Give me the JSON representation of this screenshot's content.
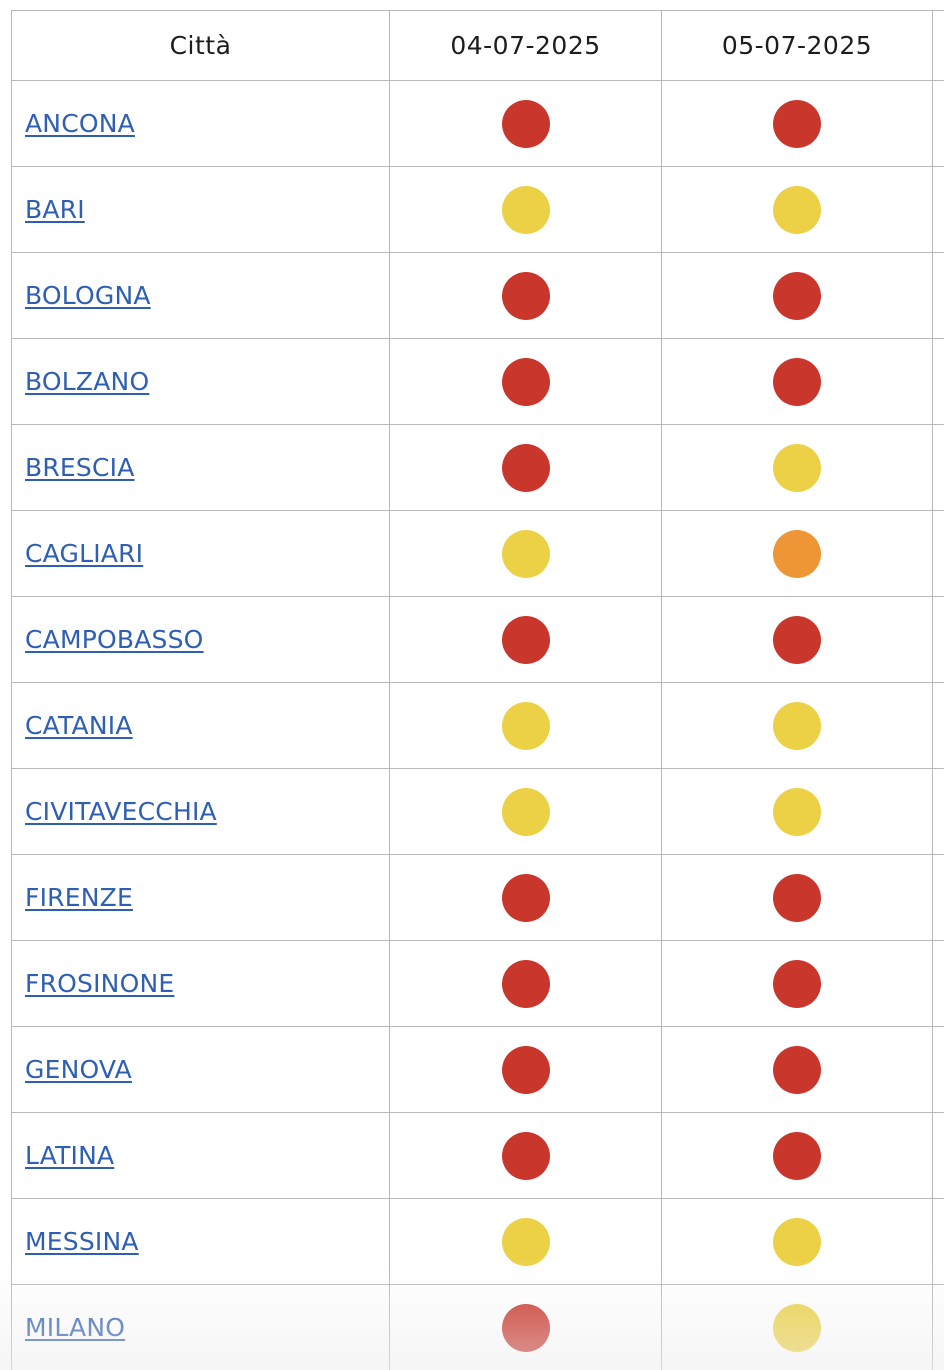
{
  "table": {
    "headers": [
      "Città",
      "04-07-2025",
      "05-07-2025",
      ""
    ],
    "level_colors": {
      "red": "#c9362c",
      "yellow": "#ecd147",
      "orange": "#ee9635"
    },
    "rows": [
      {
        "city": "ANCONA",
        "levels": [
          "red",
          "red"
        ]
      },
      {
        "city": "BARI",
        "levels": [
          "yellow",
          "yellow"
        ]
      },
      {
        "city": "BOLOGNA",
        "levels": [
          "red",
          "red"
        ]
      },
      {
        "city": "BOLZANO",
        "levels": [
          "red",
          "red"
        ]
      },
      {
        "city": "BRESCIA",
        "levels": [
          "red",
          "yellow"
        ]
      },
      {
        "city": "CAGLIARI",
        "levels": [
          "yellow",
          "orange"
        ]
      },
      {
        "city": "CAMPOBASSO",
        "levels": [
          "red",
          "red"
        ]
      },
      {
        "city": "CATANIA",
        "levels": [
          "yellow",
          "yellow"
        ]
      },
      {
        "city": "CIVITAVECCHIA",
        "levels": [
          "yellow",
          "yellow"
        ]
      },
      {
        "city": "FIRENZE",
        "levels": [
          "red",
          "red"
        ]
      },
      {
        "city": "FROSINONE",
        "levels": [
          "red",
          "red"
        ]
      },
      {
        "city": "GENOVA",
        "levels": [
          "red",
          "red"
        ]
      },
      {
        "city": "LATINA",
        "levels": [
          "red",
          "red"
        ]
      },
      {
        "city": "MESSINA",
        "levels": [
          "yellow",
          "yellow"
        ]
      },
      {
        "city": "MILANO",
        "levels": [
          "red",
          "yellow"
        ]
      }
    ]
  }
}
